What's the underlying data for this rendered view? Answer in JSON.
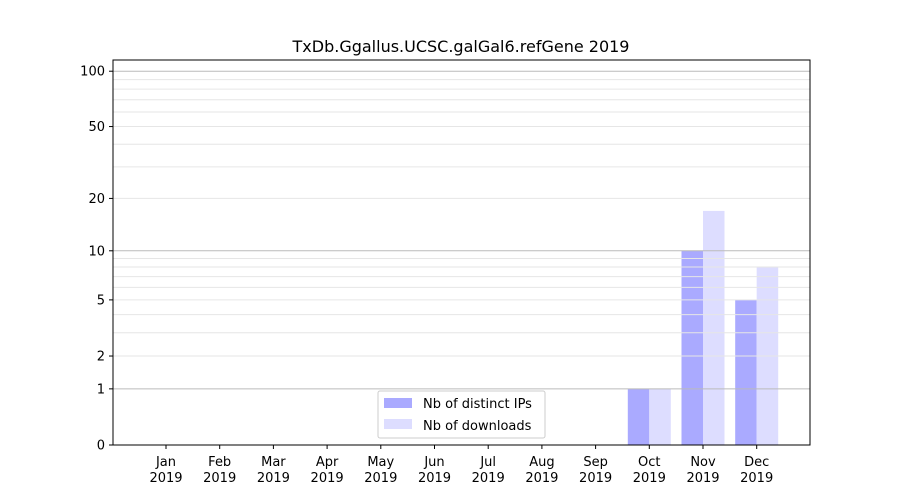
{
  "chart_data": {
    "type": "bar",
    "title": "TxDb.Ggallus.UCSC.galGal6.refGene 2019",
    "xlabel": "",
    "ylabel": "",
    "yscale": "log10(1+y)",
    "ylim": [
      0,
      115
    ],
    "yticks": [
      0,
      1,
      2,
      5,
      10,
      20,
      50,
      100
    ],
    "categories": [
      "Jan\n2019",
      "Feb\n2019",
      "Mar\n2019",
      "Apr\n2019",
      "May\n2019",
      "Jun\n2019",
      "Jul\n2019",
      "Aug\n2019",
      "Sep\n2019",
      "Oct\n2019",
      "Nov\n2019",
      "Dec\n2019"
    ],
    "series": [
      {
        "name": "Nb of distinct IPs",
        "color": "#aaaaff",
        "values": [
          0,
          0,
          0,
          0,
          0,
          0,
          0,
          0,
          0,
          1,
          10,
          5
        ]
      },
      {
        "name": "Nb of downloads",
        "color": "#ddddff",
        "values": [
          0,
          0,
          0,
          0,
          0,
          0,
          0,
          0,
          0,
          1,
          17,
          8
        ]
      }
    ],
    "grid": true,
    "legend_position": "lower-center"
  }
}
